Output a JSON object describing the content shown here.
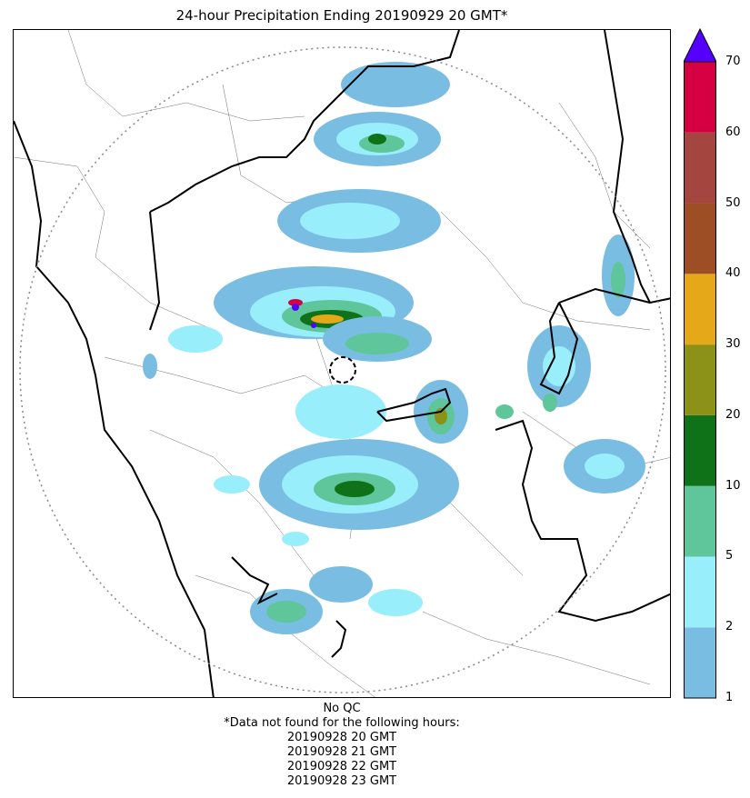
{
  "title": "24-hour Precipitation Ending 20190929 20 GMT*",
  "colorbar": {
    "ticks": [
      "1",
      "2",
      "5",
      "10",
      "20",
      "30",
      "40",
      "50",
      "60",
      "70"
    ],
    "bins": [
      {
        "from": 1,
        "to": 2,
        "color": "#7abde3"
      },
      {
        "from": 2,
        "to": 5,
        "color": "#98eefb"
      },
      {
        "from": 5,
        "to": 10,
        "color": "#5fc59b"
      },
      {
        "from": 10,
        "to": 20,
        "color": "#0f7218"
      },
      {
        "from": 20,
        "to": 30,
        "color": "#8c9217"
      },
      {
        "from": 30,
        "to": 40,
        "color": "#e5a819"
      },
      {
        "from": 40,
        "to": 50,
        "color": "#9e4e25"
      },
      {
        "from": 50,
        "to": 60,
        "color": "#a5453f"
      },
      {
        "from": 60,
        "to": 70,
        "color": "#d50041"
      }
    ],
    "extend_color": "#5500ff"
  },
  "footnote": {
    "qc": "No QC",
    "note": "*Data not found for the following hours:",
    "missing_hours": [
      "20190928 20 GMT",
      "20190928 21 GMT",
      "20190928 22 GMT",
      "20190928 23 GMT"
    ]
  }
}
